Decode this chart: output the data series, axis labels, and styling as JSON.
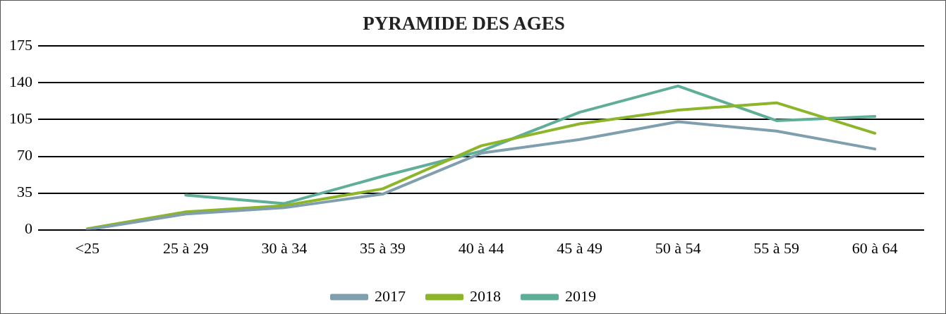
{
  "chart_data": {
    "type": "line",
    "title": "PYRAMIDE DES AGES",
    "categories": [
      "<25",
      "25 à 29",
      "30 à 34",
      "35 à 39",
      "40 à 44",
      "45 à 49",
      "50 à 54",
      "55 à 59",
      "60 à 64"
    ],
    "series": [
      {
        "name": "2017",
        "color": "#7f9fae",
        "values": [
          0,
          15,
          21,
          34,
          73,
          86,
          103,
          94,
          77
        ]
      },
      {
        "name": "2018",
        "color": "#8db52a",
        "values": [
          1,
          17,
          23,
          39,
          80,
          101,
          114,
          121,
          92
        ]
      },
      {
        "name": "2019",
        "color": "#5fae97",
        "values": [
          null,
          33,
          25,
          51,
          75,
          112,
          137,
          104,
          108
        ]
      }
    ],
    "ylim": [
      0,
      175
    ],
    "yticks": [
      0,
      35,
      70,
      105,
      140,
      175
    ],
    "grid": "y",
    "legend": "bottom",
    "marker": "none",
    "line_style": "solid"
  }
}
